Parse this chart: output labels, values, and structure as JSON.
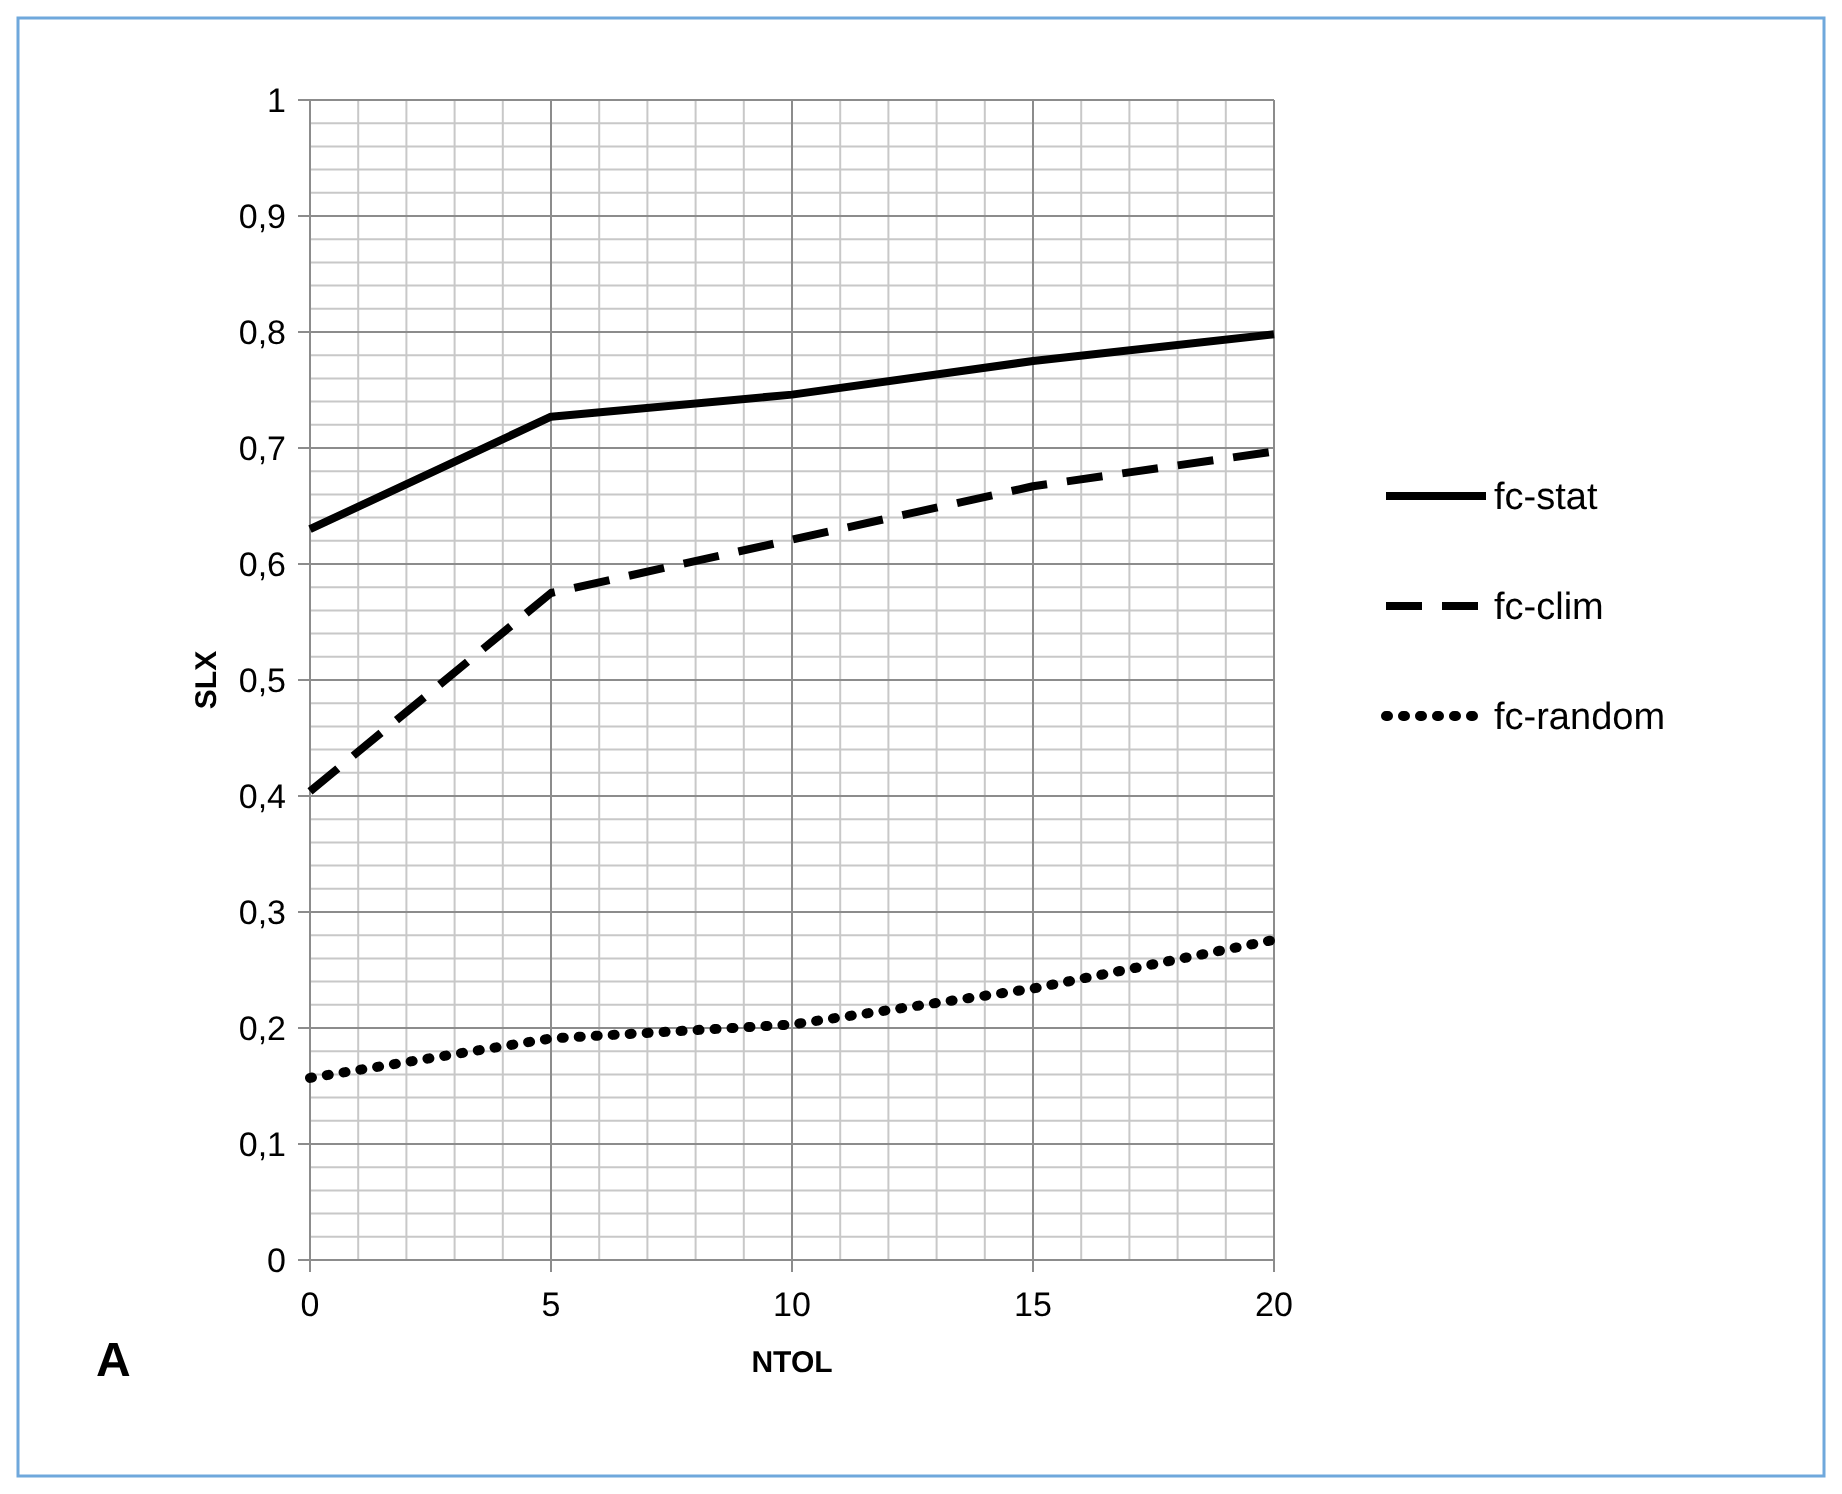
{
  "chart_data": {
    "type": "line",
    "xlabel": "NTOL",
    "ylabel": "SLX",
    "annotations": [
      "A"
    ],
    "x": [
      0,
      5,
      10,
      15,
      20
    ],
    "series": [
      {
        "name": "fc-stat",
        "color": "#000000",
        "line_style": "solid",
        "values": [
          0.63,
          0.727,
          0.746,
          0.775,
          0.798
        ]
      },
      {
        "name": "fc-clim",
        "color": "#000000",
        "line_style": "dashed",
        "values": [
          0.404,
          0.575,
          0.621,
          0.667,
          0.697
        ]
      },
      {
        "name": "fc-random",
        "color": "#000000",
        "line_style": "dotted",
        "values": [
          0.157,
          0.191,
          0.203,
          0.234,
          0.276
        ]
      }
    ],
    "xlim": [
      0,
      20
    ],
    "xticks": [
      0,
      5,
      10,
      15,
      20
    ],
    "ylim": [
      0,
      1
    ],
    "yticks": [
      0,
      {
        "value": 0.1,
        "label": "0,1"
      },
      {
        "value": 0.2,
        "label": "0,2"
      },
      {
        "value": 0.3,
        "label": "0,3"
      },
      {
        "value": 0.4,
        "label": "0,4"
      },
      {
        "value": 0.5,
        "label": "0,5"
      },
      {
        "value": 0.6,
        "label": "0,6"
      },
      {
        "value": 0.7,
        "label": "0,7"
      },
      {
        "value": 0.8,
        "label": "0,8"
      },
      {
        "value": 0.9,
        "label": "0,9"
      },
      1
    ],
    "grid": true,
    "legend": "right",
    "marker": "none"
  }
}
